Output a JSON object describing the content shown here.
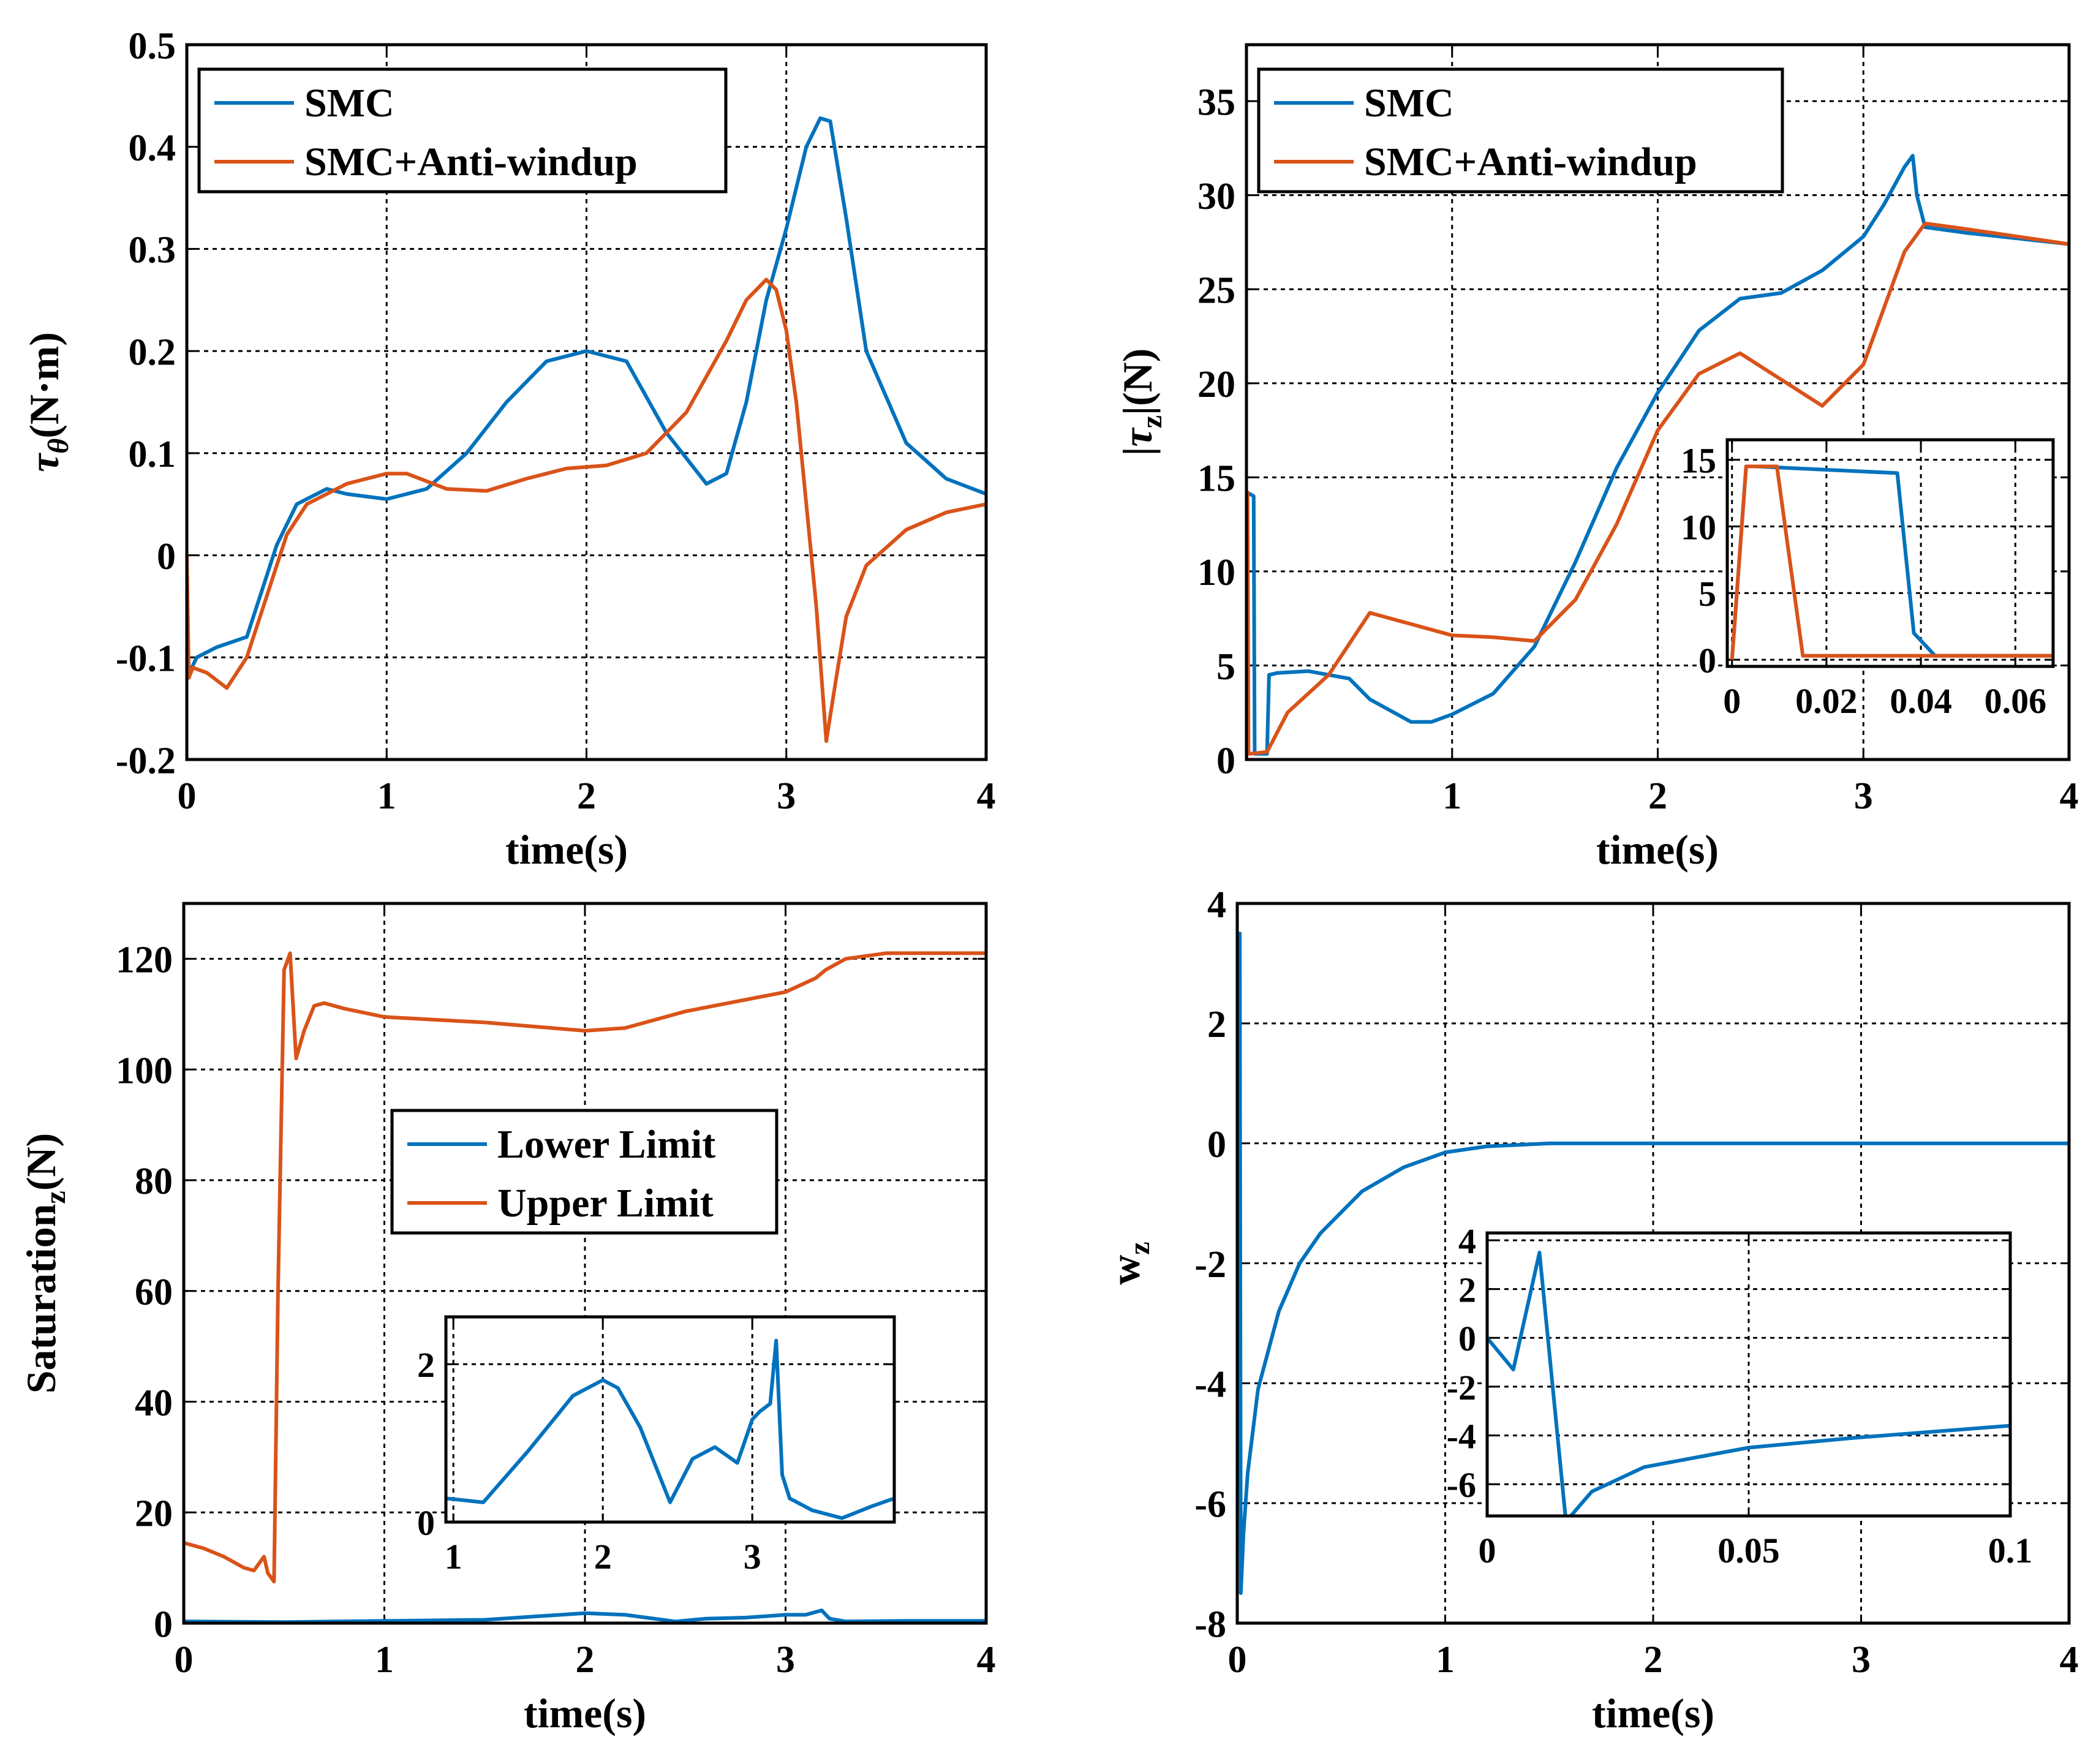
{
  "colors": {
    "series1": "#0072BD",
    "series2": "#D95319",
    "grid": "#000000",
    "axes": "#000000"
  },
  "chart_data": [
    {
      "type": "line",
      "id": "tau_theta",
      "xlabel": "time(s)",
      "ylabel": "τθ(N·m)",
      "ylabel_parts": {
        "symbol": "τ",
        "sub": "θ",
        "unit": "(N·m)"
      },
      "xlim": [
        0,
        4
      ],
      "ylim": [
        -0.2,
        0.5
      ],
      "xticks": [
        0,
        1,
        2,
        3,
        4
      ],
      "xtick_labels": [
        "0",
        "1",
        "2",
        "3",
        "4"
      ],
      "yticks": [
        -0.2,
        -0.1,
        0,
        0.1,
        0.2,
        0.3,
        0.4,
        0.5
      ],
      "ytick_labels": [
        "-0.2",
        "-0.1",
        "0",
        "0.1",
        "0.2",
        "0.3",
        "0.4",
        "0.5"
      ],
      "grid": true,
      "legend": {
        "position": "top-left",
        "entries": [
          "SMC",
          "SMC+Anti-windup"
        ]
      },
      "series": [
        {
          "name": "SMC",
          "color": "#0072BD",
          "x": [
            0,
            0.05,
            0.15,
            0.3,
            0.35,
            0.45,
            0.55,
            0.7,
            0.8,
            1.0,
            1.2,
            1.4,
            1.6,
            1.8,
            2.0,
            2.2,
            2.4,
            2.6,
            2.7,
            2.8,
            2.9,
            3.0,
            3.1,
            3.17,
            3.22,
            3.3,
            3.4,
            3.6,
            3.8,
            4.0
          ],
          "y": [
            -0.12,
            -0.1,
            -0.09,
            -0.08,
            -0.05,
            0.01,
            0.05,
            0.065,
            0.06,
            0.055,
            0.065,
            0.1,
            0.15,
            0.19,
            0.2,
            0.19,
            0.12,
            0.07,
            0.08,
            0.15,
            0.25,
            0.32,
            0.4,
            0.428,
            0.425,
            0.33,
            0.2,
            0.11,
            0.075,
            0.06
          ]
        },
        {
          "name": "SMC+Anti-windup",
          "color": "#D95319",
          "x": [
            0,
            0.01,
            0.03,
            0.1,
            0.2,
            0.3,
            0.4,
            0.5,
            0.6,
            0.8,
            1.0,
            1.1,
            1.3,
            1.5,
            1.7,
            1.9,
            2.1,
            2.3,
            2.5,
            2.7,
            2.8,
            2.9,
            2.95,
            3.0,
            3.05,
            3.1,
            3.15,
            3.2,
            3.25,
            3.3,
            3.4,
            3.6,
            3.8,
            4.0
          ],
          "y": [
            0.0,
            -0.12,
            -0.11,
            -0.115,
            -0.13,
            -0.1,
            -0.04,
            0.02,
            0.05,
            0.07,
            0.08,
            0.08,
            0.065,
            0.063,
            0.075,
            0.085,
            0.088,
            0.1,
            0.14,
            0.21,
            0.25,
            0.27,
            0.26,
            0.22,
            0.15,
            0.05,
            -0.05,
            -0.182,
            -0.12,
            -0.06,
            -0.01,
            0.025,
            0.042,
            0.05
          ]
        }
      ]
    },
    {
      "type": "line",
      "id": "tau_z",
      "xlabel": "time(s)",
      "ylabel": "|τz|(N)",
      "ylabel_parts": {
        "pre": "|",
        "symbol": "τ",
        "sub": "z",
        "unit": "|(N)"
      },
      "xlim": [
        0,
        4
      ],
      "ylim": [
        0,
        38
      ],
      "xticks": [
        1,
        2,
        3,
        4
      ],
      "xtick_labels": [
        "1",
        "2",
        "3",
        "4"
      ],
      "yticks": [
        0,
        5,
        10,
        15,
        20,
        25,
        30,
        35
      ],
      "ytick_labels": [
        "0",
        "5",
        "10",
        "15",
        "20",
        "25",
        "30",
        "35"
      ],
      "grid": true,
      "legend": {
        "position": "top-left",
        "entries": [
          "SMC",
          "SMC+Anti-windup"
        ]
      },
      "series": [
        {
          "name": "SMC",
          "color": "#0072BD",
          "x": [
            0,
            0.003,
            0.035,
            0.04,
            0.1,
            0.11,
            0.15,
            0.3,
            0.5,
            0.6,
            0.8,
            0.9,
            1.0,
            1.2,
            1.4,
            1.6,
            1.8,
            2.0,
            2.2,
            2.4,
            2.6,
            2.8,
            3.0,
            3.1,
            3.2,
            3.24,
            3.26,
            3.3,
            3.5,
            4.0
          ],
          "y": [
            0,
            14.2,
            14.0,
            0.3,
            0.3,
            4.5,
            4.6,
            4.7,
            4.3,
            3.2,
            2.0,
            2.0,
            2.4,
            3.5,
            6.0,
            10.5,
            15.5,
            19.5,
            22.8,
            24.5,
            24.8,
            26.0,
            27.8,
            29.5,
            31.5,
            32.1,
            30.0,
            28.3,
            28.0,
            27.4
          ]
        },
        {
          "name": "SMC+Anti-windup",
          "color": "#D95319",
          "x": [
            0,
            0.005,
            0.01,
            0.1,
            0.2,
            0.4,
            0.6,
            0.8,
            1.0,
            1.2,
            1.4,
            1.6,
            1.8,
            2.0,
            2.2,
            2.4,
            2.6,
            2.8,
            3.0,
            3.1,
            3.2,
            3.3,
            3.5,
            4.0
          ],
          "y": [
            0,
            14.2,
            0.3,
            0.4,
            2.5,
            4.5,
            7.8,
            7.2,
            6.6,
            6.5,
            6.3,
            8.5,
            12.5,
            17.5,
            20.5,
            21.6,
            20.2,
            18.8,
            21.0,
            24.0,
            27.0,
            28.5,
            28.2,
            27.4
          ]
        }
      ],
      "inset": {
        "xlim": [
          -0.001,
          0.068
        ],
        "ylim": [
          -0.5,
          16.5
        ],
        "xticks": [
          0,
          0.02,
          0.04,
          0.06
        ],
        "xtick_labels": [
          "0",
          "0.02",
          "0.04",
          "0.06"
        ],
        "yticks": [
          0,
          5,
          10,
          15
        ],
        "ytick_labels": [
          "0",
          "5",
          "10",
          "15"
        ],
        "series": [
          {
            "name": "SMC",
            "color": "#0072BD",
            "x": [
              0,
              0.003,
              0.005,
              0.035,
              0.0385,
              0.043,
              0.068
            ],
            "y": [
              0,
              14.5,
              14.5,
              14.0,
              2.0,
              0.3,
              0.3
            ]
          },
          {
            "name": "SMC+Anti-windup",
            "color": "#D95319",
            "x": [
              0,
              0.003,
              0.007,
              0.0095,
              0.015,
              0.068
            ],
            "y": [
              0,
              14.5,
              14.5,
              14.5,
              0.3,
              0.3
            ]
          }
        ]
      }
    },
    {
      "type": "line",
      "id": "saturation_z",
      "xlabel": "time(s)",
      "ylabel": "Saturationz(N)",
      "ylabel_parts": {
        "symbol": "Saturation",
        "sub": "z",
        "unit": "(N)"
      },
      "xlim": [
        0,
        4
      ],
      "ylim": [
        0,
        130
      ],
      "xticks": [
        0,
        1,
        2,
        3,
        4
      ],
      "xtick_labels": [
        "0",
        "1",
        "2",
        "3",
        "4"
      ],
      "yticks": [
        0,
        20,
        40,
        60,
        80,
        100,
        120
      ],
      "ytick_labels": [
        "0",
        "20",
        "40",
        "60",
        "80",
        "100",
        "120"
      ],
      "grid": true,
      "legend": {
        "position": "center",
        "entries": [
          "Lower Limit",
          "Upper Limit"
        ]
      },
      "series": [
        {
          "name": "Lower Limit",
          "color": "#0072BD",
          "x": [
            0,
            0.5,
            1.0,
            1.5,
            2.0,
            2.2,
            2.45,
            2.6,
            2.8,
            3.0,
            3.1,
            3.18,
            3.22,
            3.3,
            3.6,
            4.0
          ],
          "y": [
            0.3,
            0.2,
            0.4,
            0.6,
            1.8,
            1.5,
            0.3,
            0.8,
            1.0,
            1.5,
            1.5,
            2.3,
            0.8,
            0.3,
            0.4,
            0.4
          ]
        },
        {
          "name": "Upper Limit",
          "color": "#D95319",
          "x": [
            0,
            0.1,
            0.2,
            0.3,
            0.35,
            0.4,
            0.42,
            0.45,
            0.47,
            0.5,
            0.53,
            0.56,
            0.6,
            0.65,
            0.7,
            0.8,
            1.0,
            1.5,
            2.0,
            2.2,
            2.5,
            3.0,
            3.15,
            3.2,
            3.3,
            3.5,
            4.0
          ],
          "y": [
            14.5,
            13.5,
            12.0,
            10.0,
            9.5,
            12.0,
            9.0,
            7.5,
            60.0,
            118.0,
            121.0,
            102.0,
            107.0,
            111.5,
            112.0,
            111.0,
            109.5,
            108.5,
            107.0,
            107.5,
            110.5,
            114.0,
            116.5,
            118.0,
            120.0,
            121.0,
            121.0
          ]
        }
      ],
      "inset": {
        "xlim": [
          0.95,
          3.95
        ],
        "ylim": [
          0,
          2.6
        ],
        "xticks": [
          1,
          2,
          3
        ],
        "xtick_labels": [
          "1",
          "2",
          "3"
        ],
        "yticks": [
          0,
          2
        ],
        "ytick_labels": [
          "0",
          "2"
        ],
        "series": [
          {
            "name": "Lower Limit",
            "color": "#0072BD",
            "x": [
              0.95,
              1.2,
              1.5,
              1.8,
              2.0,
              2.1,
              2.25,
              2.45,
              2.6,
              2.75,
              2.9,
              3.0,
              3.05,
              3.12,
              3.16,
              3.2,
              3.25,
              3.4,
              3.6,
              3.8,
              3.95
            ],
            "y": [
              0.3,
              0.25,
              0.9,
              1.6,
              1.8,
              1.7,
              1.2,
              0.25,
              0.8,
              0.95,
              0.75,
              1.3,
              1.4,
              1.5,
              2.3,
              0.6,
              0.3,
              0.15,
              0.05,
              0.2,
              0.3
            ]
          }
        ]
      }
    },
    {
      "type": "line",
      "id": "w_z",
      "xlabel": "time(s)",
      "ylabel": "wz",
      "ylabel_parts": {
        "symbol": "w",
        "sub": "z",
        "unit": ""
      },
      "xlim": [
        0,
        4
      ],
      "ylim": [
        -8,
        4
      ],
      "xticks": [
        0,
        1,
        2,
        3,
        4
      ],
      "xtick_labels": [
        "0",
        "1",
        "2",
        "3",
        "4"
      ],
      "yticks": [
        -8,
        -6,
        -4,
        -2,
        0,
        2,
        4
      ],
      "ytick_labels": [
        "-8",
        "-6",
        "-4",
        "-2",
        "0",
        "2",
        "4"
      ],
      "grid": true,
      "series": [
        {
          "name": "w_z",
          "color": "#0072BD",
          "x": [
            0,
            0.003,
            0.008,
            0.012,
            0.017,
            0.03,
            0.05,
            0.1,
            0.2,
            0.3,
            0.4,
            0.6,
            0.8,
            1.0,
            1.2,
            1.5,
            2.0,
            2.5,
            3.0,
            4.0
          ],
          "y": [
            0,
            -0.5,
            -1.0,
            3.5,
            -7.5,
            -6.5,
            -5.5,
            -4.1,
            -2.8,
            -2.0,
            -1.5,
            -0.8,
            -0.4,
            -0.15,
            -0.05,
            0.0,
            0.0,
            0.0,
            0.0,
            0.0
          ]
        }
      ],
      "inset": {
        "xlim": [
          0,
          0.1
        ],
        "ylim": [
          -7.3,
          4.3
        ],
        "xticks": [
          0,
          0.05,
          0.1
        ],
        "xtick_labels": [
          "0",
          "0.05",
          "0.1"
        ],
        "yticks": [
          -6,
          -4,
          -2,
          0,
          2,
          4
        ],
        "ytick_labels": [
          "-6",
          "-4",
          "-2",
          "0",
          "2",
          "4"
        ],
        "series": [
          {
            "name": "w_z",
            "color": "#0072BD",
            "x": [
              0,
              0.005,
              0.01,
              0.015,
              0.016,
              0.02,
              0.03,
              0.05,
              0.07,
              0.1
            ],
            "y": [
              0,
              -1.3,
              3.5,
              -7.4,
              -7.3,
              -6.3,
              -5.3,
              -4.5,
              -4.1,
              -3.6
            ]
          }
        ]
      }
    }
  ]
}
